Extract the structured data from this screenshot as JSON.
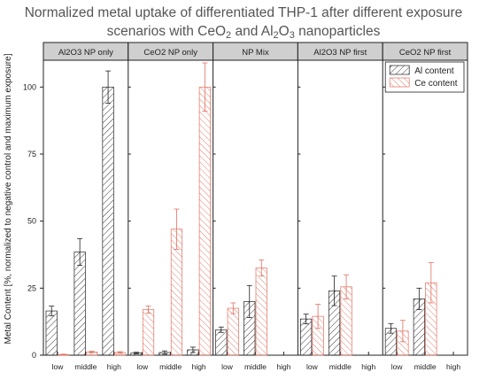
{
  "chart_data": {
    "type": "bar",
    "title_line1": "Normalized metal uptake of differentiated THP-1 after different exposure",
    "title_line2": {
      "a": "scenarios with CeO",
      "sub1": "2",
      "b": " and Al",
      "sub2": "2",
      "c": "O",
      "sub3": "3",
      "d": " nanoparticles"
    },
    "ylabel": "Metal Content [%, normalized to negative control and maximum exposure]",
    "ylim": [
      0,
      110
    ],
    "yticks": [
      0,
      25,
      50,
      75,
      100
    ],
    "grid": false,
    "legend_position": "top-right",
    "categories": [
      "low",
      "middle",
      "high"
    ],
    "colors": {
      "al": "#222222",
      "ce": "#e07060"
    },
    "panels": [
      {
        "title": "Al2O3 NP only",
        "series": [
          {
            "name": "Al content",
            "values": [
              16.5,
              38.5,
              100
            ],
            "errors": [
              1.8,
              5,
              6
            ]
          },
          {
            "name": "Ce content",
            "values": [
              0.2,
              1.2,
              1
            ],
            "errors": [
              0.2,
              0.3,
              0.3
            ]
          }
        ]
      },
      {
        "title": "CeO2 NP only",
        "series": [
          {
            "name": "Al content",
            "values": [
              0.8,
              1,
              2
            ],
            "errors": [
              0.3,
              0.6,
              1
            ]
          },
          {
            "name": "Ce content",
            "values": [
              17,
              47,
              100
            ],
            "errors": [
              1.3,
              7.5,
              9
            ]
          }
        ]
      },
      {
        "title": "NP Mix",
        "series": [
          {
            "name": "Al content",
            "values": [
              9.5,
              20,
              null
            ],
            "errors": [
              1,
              6,
              null
            ]
          },
          {
            "name": "Ce content",
            "values": [
              17.5,
              32.5,
              null
            ],
            "errors": [
              2,
              3,
              null
            ]
          }
        ]
      },
      {
        "title": "Al2O3 NP  first",
        "series": [
          {
            "name": "Al content",
            "values": [
              13.5,
              24,
              null
            ],
            "errors": [
              1.8,
              5.5,
              null
            ]
          },
          {
            "name": "Ce content",
            "values": [
              14.5,
              25.5,
              null
            ],
            "errors": [
              4.5,
              4.5,
              null
            ]
          }
        ]
      },
      {
        "title": "CeO2 NP first",
        "series": [
          {
            "name": "Al content",
            "values": [
              10,
              21,
              null
            ],
            "errors": [
              1.8,
              4,
              null
            ]
          },
          {
            "name": "Ce content",
            "values": [
              9,
              27,
              null
            ],
            "errors": [
              4,
              7.5,
              null
            ]
          }
        ]
      }
    ],
    "legend": [
      "Al content",
      "Ce content"
    ]
  }
}
